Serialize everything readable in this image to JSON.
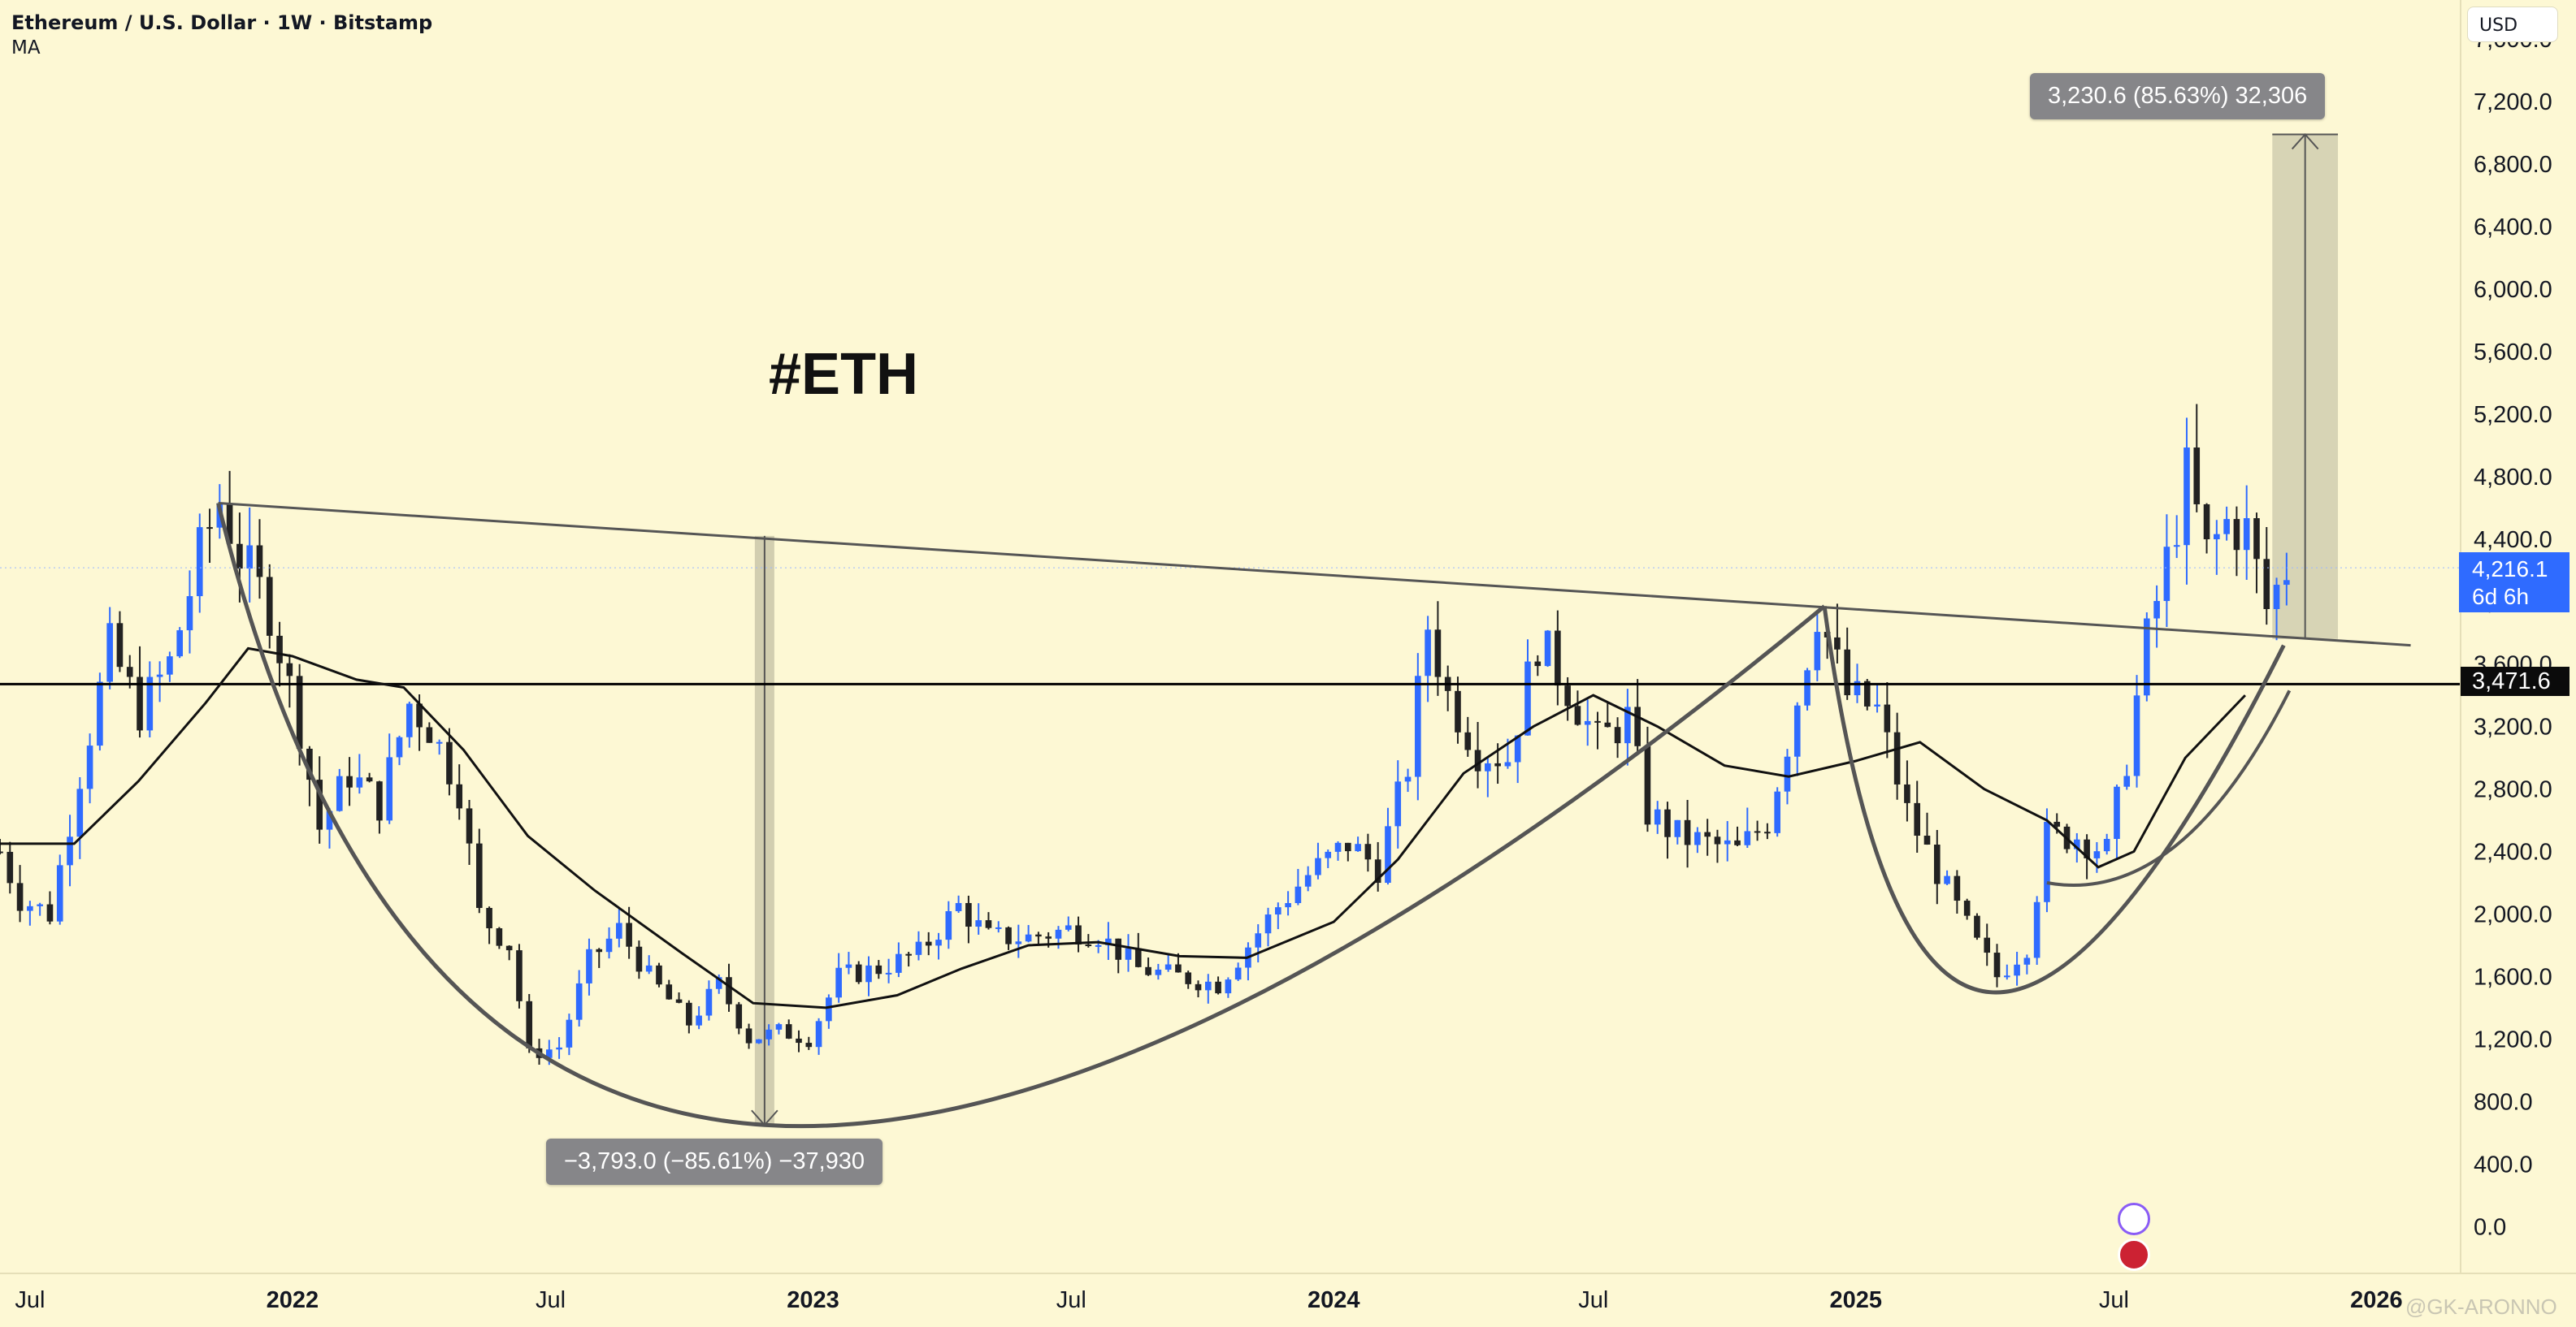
{
  "header": {
    "title": "Ethereum / U.S. Dollar · 1W · Bitstamp",
    "indicator": "MA"
  },
  "currency_button": "USD",
  "annotation_text": "#ETH",
  "measure_up": "3,230.6 (85.63%) 32,306",
  "measure_down": "−3,793.0 (−85.61%) −37,930",
  "price_tag": {
    "price": "4,216.1",
    "countdown": "6d 6h"
  },
  "level_tag": "3,471.6",
  "watermark": "@GK-ARONNO",
  "colors": {
    "background": "#fdf8d4",
    "up_candle": "#2f6bff",
    "down_candle": "#222222",
    "lines": "#555555"
  },
  "chart_data": {
    "type": "candlestick",
    "interval": "1W",
    "y_scale": "linear",
    "y_ticks": [
      "0.0",
      "400.0",
      "800.0",
      "1,200.0",
      "1,600.0",
      "2,000.0",
      "2,400.0",
      "2,800.0",
      "3,200.0",
      "3,600.0",
      "4,000.0",
      "4,400.0",
      "4,800.0",
      "5,200.0",
      "5,600.0",
      "6,000.0",
      "6,400.0",
      "6,800.0",
      "7,200.0",
      "7,600.0"
    ],
    "ylim": [
      -300,
      7850
    ],
    "x_ticks": [
      {
        "label": "Jul",
        "date": "2021-07-01",
        "bold": false
      },
      {
        "label": "2022",
        "date": "2022-01-01",
        "bold": true
      },
      {
        "label": "Jul",
        "date": "2022-07-01",
        "bold": false
      },
      {
        "label": "2023",
        "date": "2023-01-01",
        "bold": true
      },
      {
        "label": "Jul",
        "date": "2023-07-01",
        "bold": false
      },
      {
        "label": "2024",
        "date": "2024-01-01",
        "bold": true
      },
      {
        "label": "Jul",
        "date": "2024-07-01",
        "bold": false
      },
      {
        "label": "2025",
        "date": "2025-01-01",
        "bold": true
      },
      {
        "label": "Jul",
        "date": "2025-07-01",
        "bold": false
      },
      {
        "label": "2026",
        "date": "2026-01-01",
        "bold": true
      }
    ],
    "xlim": [
      "2021-06-10",
      "2026-03-01"
    ],
    "close_path": [
      [
        "2021-06-10",
        2400
      ],
      [
        "2021-06-24",
        2100
      ],
      [
        "2021-07-15",
        2000
      ],
      [
        "2021-08-05",
        2900
      ],
      [
        "2021-08-26",
        3700
      ],
      [
        "2021-09-16",
        3300
      ],
      [
        "2021-10-07",
        3600
      ],
      [
        "2021-10-28",
        4300
      ],
      [
        "2021-11-11",
        4650
      ],
      [
        "2021-11-25",
        4300
      ],
      [
        "2021-12-16",
        3950
      ],
      [
        "2022-01-06",
        3200
      ],
      [
        "2022-01-20",
        2550
      ],
      [
        "2022-02-10",
        2900
      ],
      [
        "2022-03-03",
        2700
      ],
      [
        "2022-03-24",
        3350
      ],
      [
        "2022-04-07",
        3200
      ],
      [
        "2022-04-28",
        2800
      ],
      [
        "2022-05-12",
        2000
      ],
      [
        "2022-06-02",
        1800
      ],
      [
        "2022-06-16",
        1100
      ],
      [
        "2022-07-07",
        1150
      ],
      [
        "2022-07-28",
        1700
      ],
      [
        "2022-08-18",
        1900
      ],
      [
        "2022-09-08",
        1600
      ],
      [
        "2022-10-06",
        1300
      ],
      [
        "2022-10-27",
        1550
      ],
      [
        "2022-11-17",
        1200
      ],
      [
        "2022-12-08",
        1250
      ],
      [
        "2022-12-29",
        1200
      ],
      [
        "2023-01-19",
        1600
      ],
      [
        "2023-02-16",
        1650
      ],
      [
        "2023-03-16",
        1750
      ],
      [
        "2023-04-13",
        2050
      ],
      [
        "2023-05-04",
        1850
      ],
      [
        "2023-06-01",
        1850
      ],
      [
        "2023-06-29",
        1900
      ],
      [
        "2023-07-20",
        1870
      ],
      [
        "2023-08-17",
        1650
      ],
      [
        "2023-09-14",
        1600
      ],
      [
        "2023-10-12",
        1550
      ],
      [
        "2023-11-02",
        1800
      ],
      [
        "2023-11-23",
        2050
      ],
      [
        "2023-12-14",
        2250
      ],
      [
        "2024-01-11",
        2450
      ],
      [
        "2024-02-01",
        2300
      ],
      [
        "2024-02-22",
        2950
      ],
      [
        "2024-03-07",
        3850
      ],
      [
        "2024-03-21",
        3400
      ],
      [
        "2024-04-11",
        3050
      ],
      [
        "2024-05-02",
        3000
      ],
      [
        "2024-05-23",
        3750
      ],
      [
        "2024-06-13",
        3450
      ],
      [
        "2024-07-04",
        3100
      ],
      [
        "2024-07-25",
        3250
      ],
      [
        "2024-08-08",
        2650
      ],
      [
        "2024-08-29",
        2500
      ],
      [
        "2024-09-19",
        2450
      ],
      [
        "2024-10-10",
        2400
      ],
      [
        "2024-10-31",
        2600
      ],
      [
        "2024-11-14",
        3100
      ],
      [
        "2024-12-05",
        3950
      ],
      [
        "2024-12-26",
        3400
      ],
      [
        "2025-01-16",
        3300
      ],
      [
        "2025-02-06",
        2650
      ],
      [
        "2025-03-06",
        2150
      ],
      [
        "2025-03-27",
        1800
      ],
      [
        "2025-04-10",
        1600
      ],
      [
        "2025-05-01",
        1800
      ],
      [
        "2025-05-15",
        2500
      ],
      [
        "2025-06-05",
        2500
      ],
      [
        "2025-06-26",
        2400
      ],
      [
        "2025-07-10",
        3000
      ],
      [
        "2025-07-24",
        3750
      ],
      [
        "2025-08-07",
        4250
      ],
      [
        "2025-08-21",
        4800
      ],
      [
        "2025-09-04",
        4300
      ],
      [
        "2025-09-18",
        4500
      ],
      [
        "2025-10-02",
        4450
      ],
      [
        "2025-10-16",
        3950
      ],
      [
        "2025-10-30",
        4216
      ]
    ],
    "ma_line": [
      [
        "2021-06-10",
        2450
      ],
      [
        "2021-08-01",
        2450
      ],
      [
        "2021-09-15",
        2850
      ],
      [
        "2021-11-01",
        3350
      ],
      [
        "2021-12-01",
        3700
      ],
      [
        "2022-01-01",
        3650
      ],
      [
        "2022-02-15",
        3500
      ],
      [
        "2022-03-20",
        3450
      ],
      [
        "2022-05-01",
        3050
      ],
      [
        "2022-06-15",
        2500
      ],
      [
        "2022-08-01",
        2150
      ],
      [
        "2022-10-01",
        1750
      ],
      [
        "2022-11-20",
        1430
      ],
      [
        "2023-01-10",
        1400
      ],
      [
        "2023-03-01",
        1480
      ],
      [
        "2023-04-15",
        1650
      ],
      [
        "2023-06-01",
        1800
      ],
      [
        "2023-07-20",
        1820
      ],
      [
        "2023-09-15",
        1730
      ],
      [
        "2023-11-01",
        1720
      ],
      [
        "2024-01-01",
        1950
      ],
      [
        "2024-02-15",
        2350
      ],
      [
        "2024-04-01",
        2900
      ],
      [
        "2024-05-20",
        3200
      ],
      [
        "2024-07-01",
        3400
      ],
      [
        "2024-08-15",
        3200
      ],
      [
        "2024-10-01",
        2950
      ],
      [
        "2024-11-15",
        2880
      ],
      [
        "2025-01-01",
        2980
      ],
      [
        "2025-02-15",
        3100
      ],
      [
        "2025-04-01",
        2800
      ],
      [
        "2025-05-15",
        2600
      ],
      [
        "2025-06-20",
        2300
      ],
      [
        "2025-07-15",
        2400
      ],
      [
        "2025-08-20",
        3000
      ],
      [
        "2025-10-01",
        3400
      ]
    ],
    "trendline": {
      "from": [
        "2021-11-10",
        4630
      ],
      "to": [
        "2026-01-25",
        3720
      ]
    },
    "horizontal_level": 3471.6,
    "current_price": 4216.1,
    "arcs": [
      {
        "from": [
          "2021-11-10",
          4630
        ],
        "through": [
          "2022-11-28",
          650
        ],
        "to": [
          "2024-12-10",
          3970
        ]
      },
      {
        "from": [
          "2024-12-10",
          3970
        ],
        "through": [
          "2025-04-05",
          1500
        ],
        "to": [
          "2025-10-28",
          3720
        ]
      }
    ],
    "inner_arc": {
      "from": [
        "2025-05-15",
        2200
      ],
      "to": [
        "2025-11-01",
        3430
      ]
    },
    "measure_bands": [
      {
        "date": "2022-11-28",
        "top": 4420,
        "bottom": 650,
        "direction": "down"
      },
      {
        "date_from": "2025-10-20",
        "date_to": "2025-12-05",
        "top": 6990,
        "bottom": 3760,
        "direction": "up"
      }
    ]
  }
}
